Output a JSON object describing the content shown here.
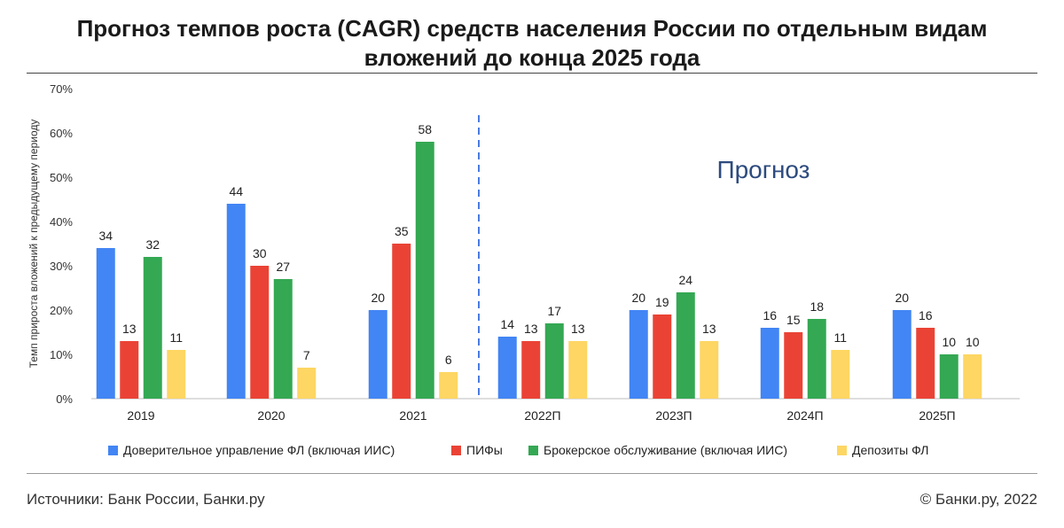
{
  "header": {
    "title_line1": "Прогноз темпов роста (CAGR) средств населения России по отдельным видам",
    "title_line2": "вложений до конца 2025 года"
  },
  "forecast_label": "Прогноз",
  "footer": {
    "source": "Источники: Банк России, Банки.ру",
    "copyright": "© Банки.ру, 2022"
  },
  "chart_data": {
    "type": "bar",
    "title": "Прогноз темпов роста (CAGR) средств населения России по отдельным видам вложений до конца 2025 года",
    "xlabel": "",
    "ylabel": "Темп прироста вложений к предыдущему периоду",
    "ylim": [
      0,
      70
    ],
    "yticks": [
      "0%",
      "10%",
      "20%",
      "30%",
      "40%",
      "50%",
      "60%",
      "70%"
    ],
    "grid": false,
    "legend_position": "bottom",
    "categories": [
      "2019",
      "2020",
      "2021",
      "2022П",
      "2023П",
      "2024П",
      "2025П"
    ],
    "forecast_start_index": 3,
    "series": [
      {
        "name": "Доверительное управление ФЛ (включая ИИС)",
        "color": "#4285f4",
        "values": [
          34,
          44,
          20,
          14,
          20,
          16,
          20
        ]
      },
      {
        "name": "ПИФы",
        "color": "#ea4335",
        "values": [
          13,
          30,
          35,
          13,
          19,
          15,
          16
        ]
      },
      {
        "name": "Брокерское обслуживание (включая ИИС)",
        "color": "#34a853",
        "values": [
          32,
          27,
          58,
          17,
          24,
          18,
          10
        ]
      },
      {
        "name": "Депозиты ФЛ",
        "color": "#fdd663",
        "values": [
          11,
          7,
          6,
          13,
          13,
          11,
          10
        ]
      }
    ]
  }
}
